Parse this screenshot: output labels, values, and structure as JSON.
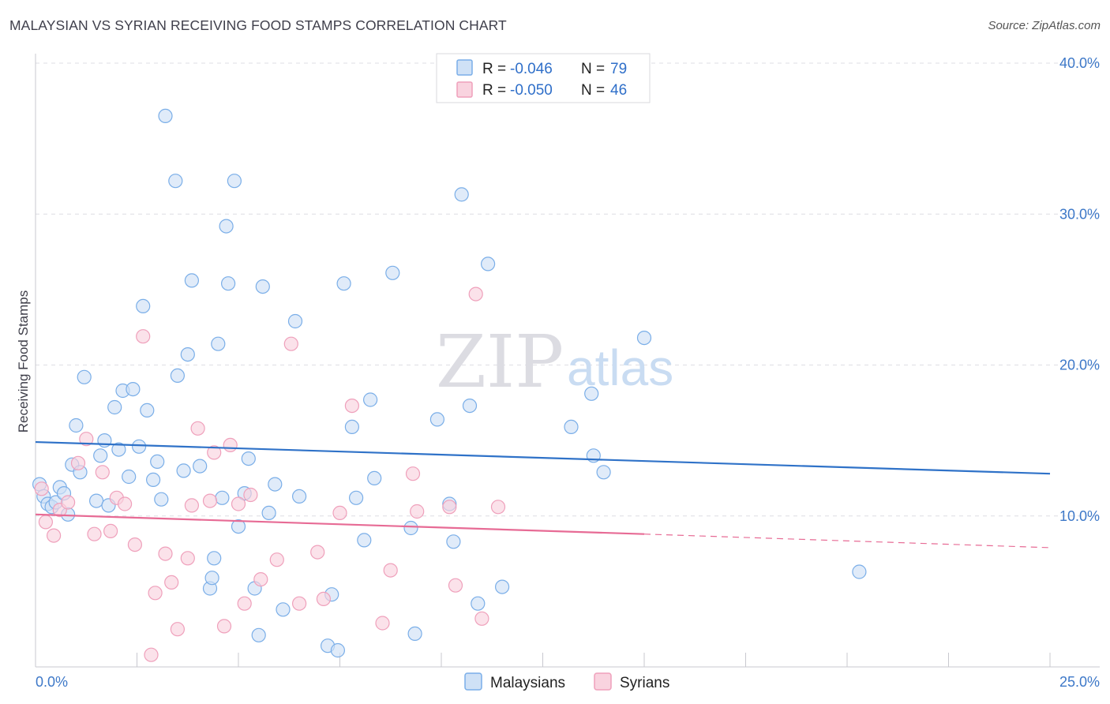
{
  "chart_data": {
    "type": "scatter",
    "title": "MALAYSIAN VS SYRIAN RECEIVING FOOD STAMPS CORRELATION CHART",
    "source": "Source: ZipAtlas.com",
    "ylabel": "Receiving Food Stamps",
    "xlim": [
      0,
      25
    ],
    "ylim": [
      0,
      40
    ],
    "x_ticks": [
      {
        "value": 0,
        "label": "0.0%"
      },
      {
        "value": 25,
        "label": "25.0%"
      }
    ],
    "y_ticks": [
      {
        "value": 10,
        "label": "10.0%"
      },
      {
        "value": 20,
        "label": "20.0%"
      },
      {
        "value": 30,
        "label": "30.0%"
      },
      {
        "value": 40,
        "label": "40.0%"
      }
    ],
    "watermark": {
      "zip": "ZIP",
      "atlas": "atlas"
    },
    "legend": [
      {
        "r_label": "R =",
        "r_value": "-0.046",
        "n_label": "N =",
        "n_value": "79"
      },
      {
        "r_label": "R =",
        "r_value": "-0.050",
        "n_label": "N =",
        "n_value": "46"
      }
    ],
    "series": [
      {
        "name": "Malaysians",
        "color": "#7aaee8",
        "fill": "#cfe1f6",
        "trend": {
          "x0": 0,
          "y0": 14.9,
          "x1": 25,
          "y1": 12.8,
          "color": "#2f72c8"
        },
        "points": [
          [
            0.1,
            12.1
          ],
          [
            0.2,
            11.3
          ],
          [
            0.3,
            10.8
          ],
          [
            0.4,
            10.6
          ],
          [
            0.5,
            10.9
          ],
          [
            0.6,
            11.9
          ],
          [
            0.7,
            11.5
          ],
          [
            0.8,
            10.1
          ],
          [
            0.9,
            13.4
          ],
          [
            1.0,
            16.0
          ],
          [
            1.1,
            12.9
          ],
          [
            1.2,
            19.2
          ],
          [
            1.5,
            11.0
          ],
          [
            1.6,
            14.0
          ],
          [
            1.7,
            15.0
          ],
          [
            1.8,
            10.7
          ],
          [
            1.95,
            17.2
          ],
          [
            2.05,
            14.4
          ],
          [
            2.15,
            18.3
          ],
          [
            2.3,
            12.6
          ],
          [
            2.4,
            18.4
          ],
          [
            2.55,
            14.6
          ],
          [
            2.65,
            23.9
          ],
          [
            2.75,
            17.0
          ],
          [
            2.9,
            12.4
          ],
          [
            3.0,
            13.6
          ],
          [
            3.1,
            11.1
          ],
          [
            3.2,
            36.5
          ],
          [
            3.45,
            32.2
          ],
          [
            3.5,
            19.3
          ],
          [
            3.65,
            13.0
          ],
          [
            3.75,
            20.7
          ],
          [
            3.85,
            25.6
          ],
          [
            4.05,
            13.3
          ],
          [
            4.3,
            5.2
          ],
          [
            4.35,
            5.9
          ],
          [
            4.4,
            7.2
          ],
          [
            4.5,
            21.4
          ],
          [
            4.6,
            11.2
          ],
          [
            4.7,
            29.2
          ],
          [
            4.75,
            25.4
          ],
          [
            4.9,
            32.2
          ],
          [
            5.0,
            9.3
          ],
          [
            5.15,
            11.5
          ],
          [
            5.25,
            13.8
          ],
          [
            5.4,
            5.2
          ],
          [
            5.5,
            2.1
          ],
          [
            5.6,
            25.2
          ],
          [
            5.75,
            10.2
          ],
          [
            5.9,
            12.1
          ],
          [
            6.1,
            3.8
          ],
          [
            6.4,
            22.9
          ],
          [
            6.5,
            11.3
          ],
          [
            7.2,
            1.4
          ],
          [
            7.3,
            4.8
          ],
          [
            7.45,
            1.1
          ],
          [
            7.6,
            25.4
          ],
          [
            7.8,
            15.9
          ],
          [
            7.9,
            11.2
          ],
          [
            8.1,
            8.4
          ],
          [
            8.25,
            17.7
          ],
          [
            8.35,
            12.5
          ],
          [
            8.8,
            26.1
          ],
          [
            9.25,
            9.2
          ],
          [
            9.35,
            2.2
          ],
          [
            9.9,
            16.4
          ],
          [
            10.2,
            10.8
          ],
          [
            10.3,
            8.3
          ],
          [
            10.5,
            31.3
          ],
          [
            10.7,
            17.3
          ],
          [
            10.9,
            4.2
          ],
          [
            11.15,
            26.7
          ],
          [
            11.5,
            5.3
          ],
          [
            13.2,
            15.9
          ],
          [
            13.7,
            18.1
          ],
          [
            13.75,
            14.0
          ],
          [
            14.0,
            12.9
          ],
          [
            15.0,
            21.8
          ],
          [
            20.3,
            6.3
          ]
        ]
      },
      {
        "name": "Syrians",
        "color": "#efa0bb",
        "fill": "#f9d3df",
        "trend": {
          "x0": 0,
          "y0": 10.1,
          "x1": 15.0,
          "y1": 8.8,
          "dash_to_x": 25,
          "dash_to_y": 7.9,
          "color": "#e76b95"
        },
        "points": [
          [
            0.15,
            11.8
          ],
          [
            0.25,
            9.6
          ],
          [
            0.45,
            8.7
          ],
          [
            0.6,
            10.4
          ],
          [
            0.8,
            10.9
          ],
          [
            1.05,
            13.5
          ],
          [
            1.25,
            15.1
          ],
          [
            1.45,
            8.8
          ],
          [
            1.65,
            12.9
          ],
          [
            1.85,
            9.0
          ],
          [
            2.0,
            11.2
          ],
          [
            2.2,
            10.8
          ],
          [
            2.45,
            8.1
          ],
          [
            2.65,
            21.9
          ],
          [
            2.85,
            0.8
          ],
          [
            2.95,
            4.9
          ],
          [
            3.2,
            7.5
          ],
          [
            3.35,
            5.6
          ],
          [
            3.5,
            2.5
          ],
          [
            3.75,
            7.2
          ],
          [
            3.85,
            10.7
          ],
          [
            4.0,
            15.8
          ],
          [
            4.3,
            11.0
          ],
          [
            4.4,
            14.2
          ],
          [
            4.65,
            2.7
          ],
          [
            4.8,
            14.7
          ],
          [
            5.0,
            10.8
          ],
          [
            5.15,
            4.2
          ],
          [
            5.3,
            11.4
          ],
          [
            5.55,
            5.8
          ],
          [
            5.95,
            7.1
          ],
          [
            6.3,
            21.4
          ],
          [
            6.5,
            4.2
          ],
          [
            6.95,
            7.6
          ],
          [
            7.1,
            4.5
          ],
          [
            7.5,
            10.2
          ],
          [
            7.8,
            17.3
          ],
          [
            8.55,
            2.9
          ],
          [
            8.75,
            6.4
          ],
          [
            9.3,
            12.8
          ],
          [
            9.4,
            10.3
          ],
          [
            10.2,
            10.6
          ],
          [
            10.35,
            5.4
          ],
          [
            10.85,
            24.7
          ],
          [
            11.0,
            3.2
          ],
          [
            11.4,
            10.6
          ]
        ]
      }
    ]
  }
}
